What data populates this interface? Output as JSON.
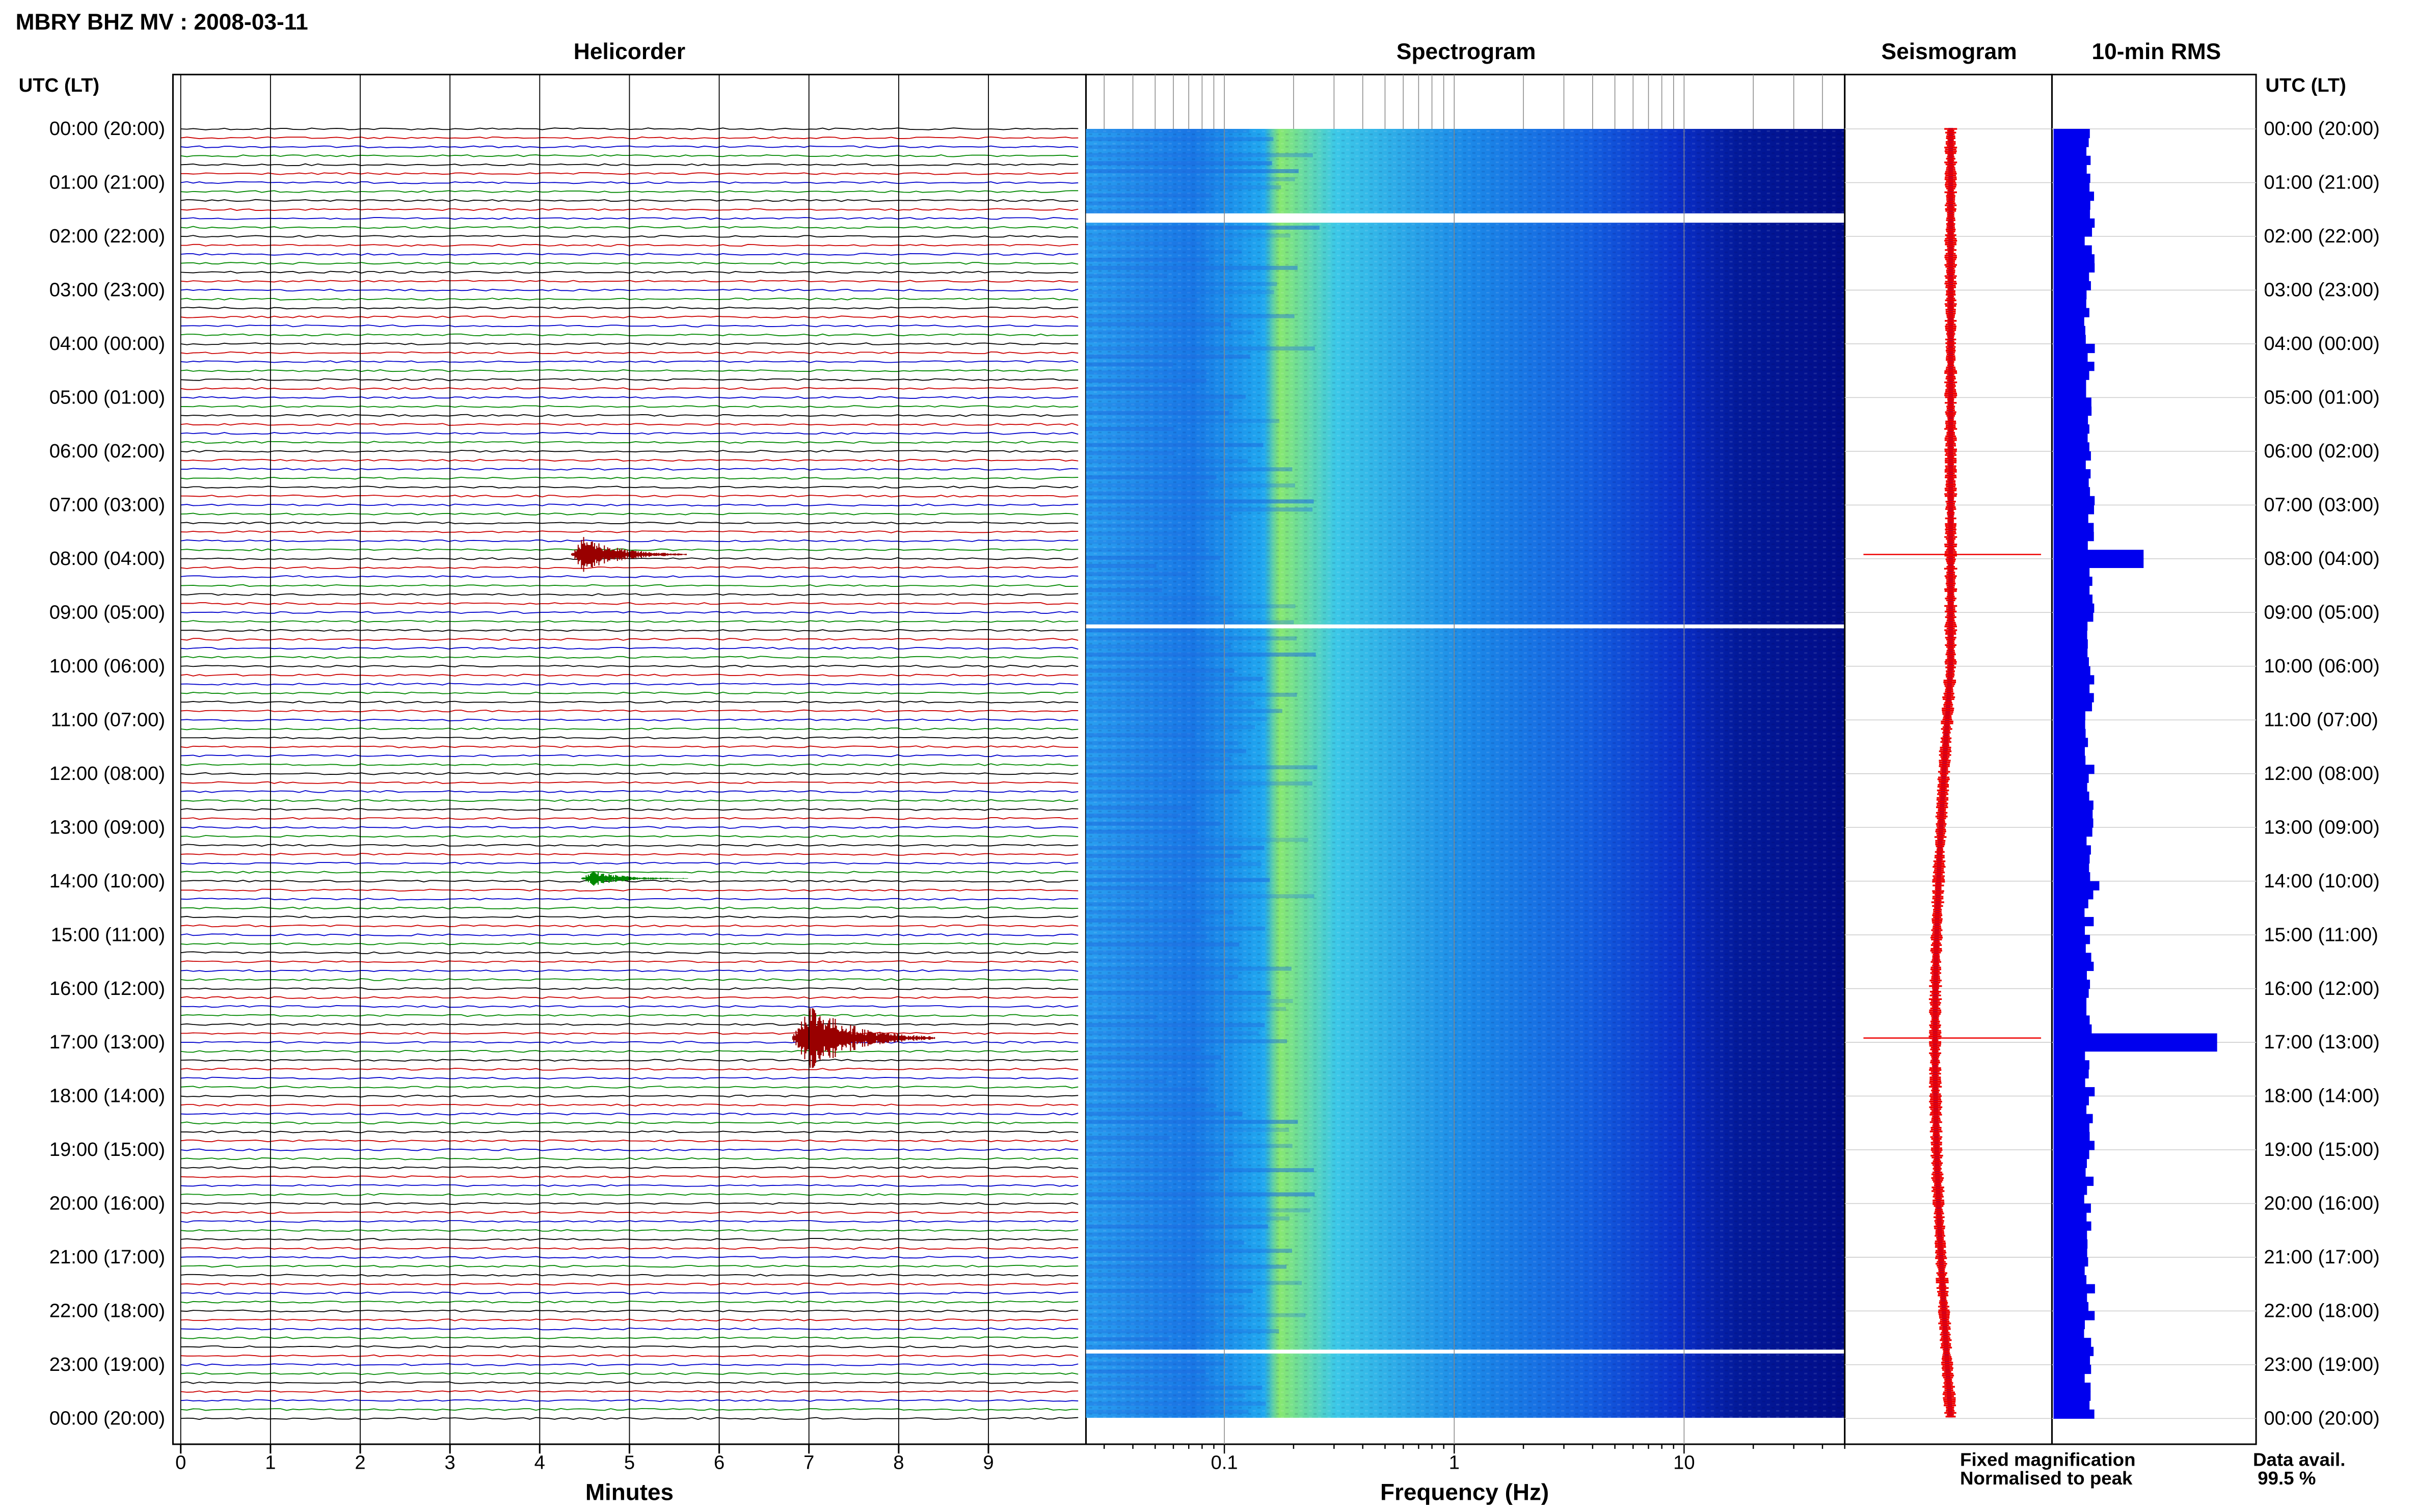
{
  "chart_data": {
    "type": "heatmap",
    "title": "MBRY BHZ MV : 2008-03-11",
    "hours_axis_title": "UTC (LT)",
    "hour_labels": [
      "00:00 (20:00)",
      "01:00 (21:00)",
      "02:00 (22:00)",
      "03:00 (23:00)",
      "04:00 (00:00)",
      "05:00 (01:00)",
      "06:00 (02:00)",
      "07:00 (03:00)",
      "08:00 (04:00)",
      "09:00 (05:00)",
      "10:00 (06:00)",
      "11:00 (07:00)",
      "12:00 (08:00)",
      "13:00 (09:00)",
      "14:00 (10:00)",
      "15:00 (11:00)",
      "16:00 (12:00)",
      "17:00 (13:00)",
      "18:00 (14:00)",
      "19:00 (15:00)",
      "20:00 (16:00)",
      "21:00 (17:00)",
      "22:00 (18:00)",
      "23:00 (19:00)",
      "00:00 (20:00)"
    ],
    "helicorder": {
      "title": "Helicorder",
      "xlabel": "Minutes",
      "x_ticks": [
        "0",
        "1",
        "2",
        "3",
        "4",
        "5",
        "6",
        "7",
        "8",
        "9"
      ],
      "xlim": [
        0,
        10
      ],
      "trace_colors": [
        "#000000",
        "#cc0000",
        "#0000cc",
        "#008800"
      ],
      "events": [
        {
          "hour": 7.92,
          "minute": 4.5,
          "duration_min": 1.3,
          "amplitude": 3,
          "color": "#990000"
        },
        {
          "hour": 13.95,
          "minute": 4.6,
          "duration_min": 1.2,
          "amplitude": 1.2,
          "color": "#008800"
        },
        {
          "hour": 16.92,
          "minute": 7.0,
          "duration_min": 1.6,
          "amplitude": 6,
          "color": "#990000"
        }
      ]
    },
    "spectrogram": {
      "title": "Spectrogram",
      "xlabel": "Frequency (Hz)",
      "x_ticks": [
        "0.1",
        "1",
        "10"
      ],
      "xlim": [
        0.025,
        50
      ],
      "x_scale": "log",
      "gaps_hours": [
        1.6,
        9.25,
        22.75
      ]
    },
    "seismogram": {
      "title": "Seismogram",
      "spikes_hours": [
        7.92,
        16.92
      ]
    },
    "rms": {
      "title": "10-min RMS",
      "peaks": [
        {
          "hour": 7.92,
          "value": 0.55
        },
        {
          "hour": 13.95,
          "value": 0.28
        },
        {
          "hour": 16.92,
          "value": 1.0
        }
      ],
      "base_value": 0.22,
      "color": "#0000ee"
    },
    "legend": {
      "fixed": "Fixed magnification",
      "fixed_color": "#0000dd",
      "normalised": "Normalised to peak",
      "normalised_color": "#ee0000"
    },
    "data_avail": {
      "label": "Data avail.",
      "value": "99.5 %"
    }
  }
}
